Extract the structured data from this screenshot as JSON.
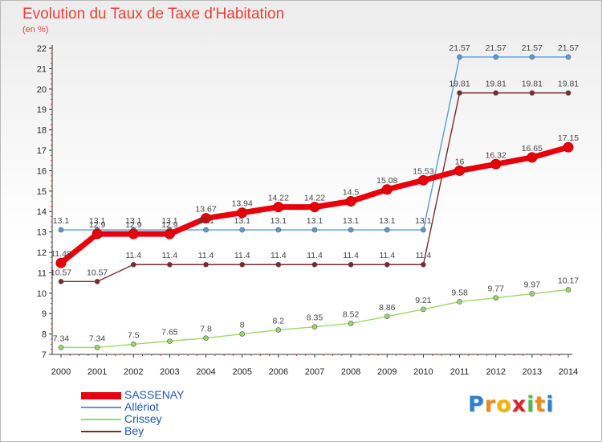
{
  "page": {
    "title": "Evolution du Taux de Taxe d'Habitation",
    "subtitle": "(en %)"
  },
  "chart_data": {
    "type": "line",
    "title": "Evolution du Taux de Taxe d'Habitation",
    "ylabel": "(en %)",
    "xlabel": "",
    "x": [
      2000,
      2001,
      2002,
      2003,
      2004,
      2005,
      2006,
      2007,
      2008,
      2009,
      2010,
      2011,
      2012,
      2013,
      2014
    ],
    "ylim": [
      7,
      22
    ],
    "yticks": [
      7,
      8,
      9,
      10,
      11,
      12,
      13,
      14,
      15,
      16,
      17,
      18,
      19,
      20,
      21,
      22
    ],
    "grid": false,
    "legend_position": "bottom-left",
    "series": [
      {
        "name": "SASSENAY",
        "color": "#e8000c",
        "values": [
          11.48,
          12.9,
          12.9,
          12.9,
          13.67,
          13.94,
          14.22,
          14.22,
          14.5,
          15.08,
          15.53,
          16,
          16.32,
          16.65,
          17.15
        ],
        "labels": [
          "11.48",
          "12.9",
          "12.9",
          "12.9",
          "13.67",
          "13.94",
          "14.22",
          "14.22",
          "14.5",
          "15.08",
          "15.53",
          "16",
          "16.32",
          "16.65",
          "17.15"
        ]
      },
      {
        "name": "Allériot",
        "color": "#5b9bd5",
        "values": [
          13.1,
          13.1,
          13.1,
          13.1,
          13.1,
          13.1,
          13.1,
          13.1,
          13.1,
          13.1,
          13.1,
          21.57,
          21.57,
          21.57,
          21.57
        ],
        "labels": [
          "13.1",
          "13.1",
          "13.1",
          "13.1",
          "13.1",
          "13.1",
          "13.1",
          "13.1",
          "13.1",
          "13.1",
          "13.1",
          "21.57",
          "21.57",
          "21.57",
          "21.57"
        ]
      },
      {
        "name": "Crissey",
        "color": "#9cd66b",
        "values": [
          7.34,
          7.34,
          7.5,
          7.65,
          7.8,
          8,
          8.2,
          8.35,
          8.52,
          8.86,
          9.21,
          9.58,
          9.77,
          9.97,
          10.17
        ],
        "labels": [
          "7.34",
          "7.34",
          "7.5",
          "7.65",
          "7.8",
          "8",
          "8.2",
          "8.35",
          "8.52",
          "8.86",
          "9.21",
          "9.58",
          "9.77",
          "9.97",
          "10.17"
        ]
      },
      {
        "name": "Bey",
        "color": "#7a2a2e",
        "values": [
          10.57,
          10.57,
          11.4,
          11.4,
          11.4,
          11.4,
          11.4,
          11.4,
          11.4,
          11.4,
          11.4,
          19.81,
          19.81,
          19.81,
          19.81
        ],
        "labels": [
          "10.57",
          "10.57",
          "11.4",
          "11.4",
          "11.4",
          "11.4",
          "11.4",
          "11.4",
          "11.4",
          "11.4",
          "11.4",
          "19.81",
          "19.81",
          "19.81",
          "19.81"
        ]
      }
    ]
  },
  "legend": {
    "items": [
      {
        "name": "SASSENAY",
        "color": "#e8000c",
        "weight": "thick"
      },
      {
        "name": "Allériot",
        "color": "#5b9bd5",
        "weight": "thin"
      },
      {
        "name": "Crissey",
        "color": "#9cd66b",
        "weight": "thin"
      },
      {
        "name": "Bey",
        "color": "#7a2a2e",
        "weight": "thin"
      }
    ]
  },
  "logo": {
    "letters": [
      "P",
      "r",
      "o",
      "x",
      "i",
      "t",
      "i"
    ],
    "colors": [
      "#2f7fd0",
      "#e98d1a",
      "#f2b400",
      "#d5262b",
      "#58b94a",
      "#e98d1a",
      "#2f7fd0"
    ]
  }
}
